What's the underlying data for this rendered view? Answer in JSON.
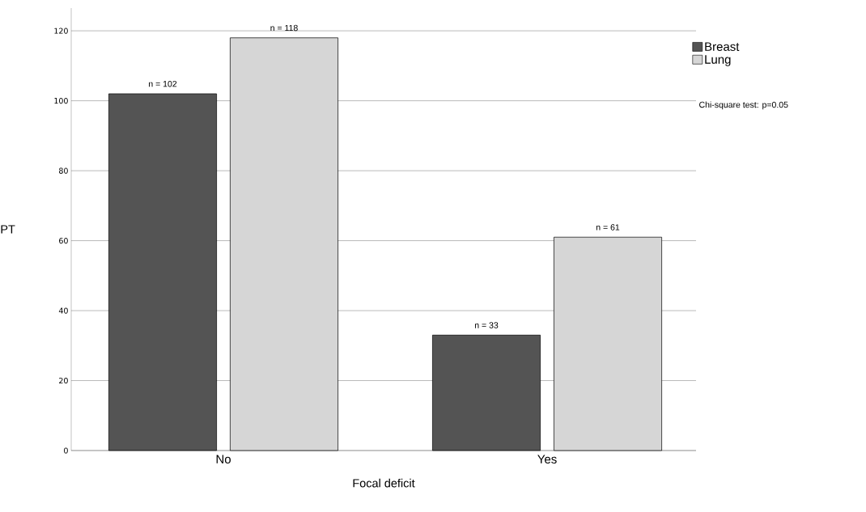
{
  "chart_data": {
    "type": "bar",
    "xlabel": "Focal deficit",
    "ylabel": "PT",
    "categories": [
      "No",
      "Yes"
    ],
    "series": [
      {
        "name": "Breast",
        "color": "#545454",
        "values": [
          102,
          33
        ],
        "value_labels": [
          "n = 102",
          "n = 33"
        ]
      },
      {
        "name": "Lung",
        "color": "#d6d6d6",
        "values": [
          118,
          61
        ],
        "value_labels": [
          "n = 118",
          "n = 61"
        ]
      }
    ],
    "ylim": [
      0,
      126.5
    ],
    "yticks": [
      0,
      20,
      40,
      60,
      80,
      100,
      120
    ],
    "grid": "y",
    "legend": "top right",
    "annotations": [
      "Chi-square test: p=0.05"
    ]
  }
}
